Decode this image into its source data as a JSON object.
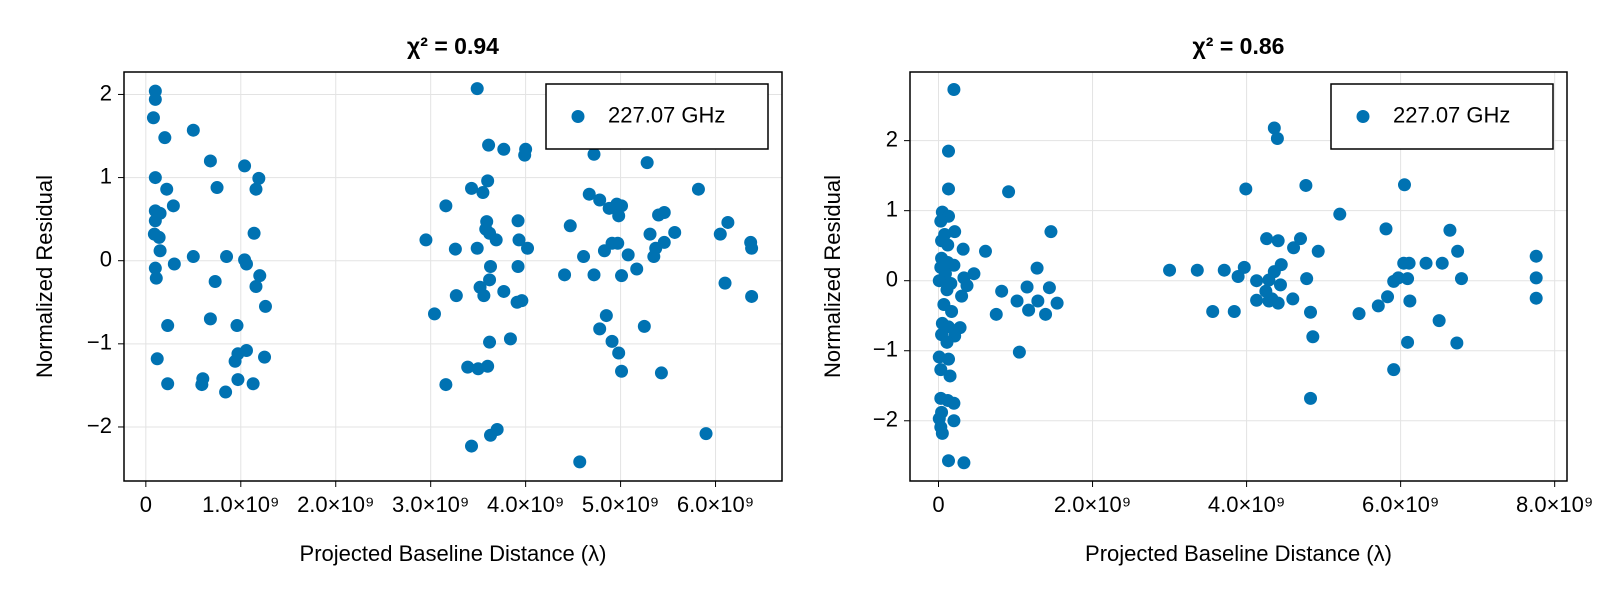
{
  "chart_data": [
    {
      "type": "scatter",
      "title": "χ² = 0.94",
      "xlabel": "Projected Baseline Distance (λ)",
      "ylabel": "Normalized Residual",
      "xlim": [
        -230000000.0,
        6700000000.0
      ],
      "ylim": [
        -2.65,
        2.27
      ],
      "xticks": [
        0,
        {
          "value": 1000000000.0,
          "label": "1.0×10⁹"
        },
        {
          "value": 2000000000.0,
          "label": "2.0×10⁹"
        },
        {
          "value": 3000000000.0,
          "label": "3.0×10⁹"
        },
        {
          "value": 4000000000.0,
          "label": "4.0×10⁹"
        },
        {
          "value": 5000000000.0,
          "label": "5.0×10⁹"
        },
        {
          "value": 6000000000.0,
          "label": "6.0×10⁹"
        }
      ],
      "yticks": [
        -2,
        -1,
        0,
        1,
        2
      ],
      "grid": true,
      "legend": "upper right",
      "series": [
        {
          "name": "227.07 GHz",
          "color": "#0072b2",
          "x": [
            100000000.0,
            100000000.0,
            80000000.0,
            500000000.0,
            200000000.0,
            680000000.0,
            1040000000.0,
            1190000000.0,
            100000000.0,
            220000000.0,
            750000000.0,
            1160000000.0,
            290000000.0,
            100000000.0,
            150000000.0,
            100000000.0,
            90000000.0,
            140000000.0,
            1140000000.0,
            150000000.0,
            500000000.0,
            850000000.0,
            1040000000.0,
            1060000000.0,
            300000000.0,
            100000000.0,
            1200000000.0,
            110000000.0,
            730000000.0,
            1160000000.0,
            1260000000.0,
            680000000.0,
            230000000.0,
            960000000.0,
            1060000000.0,
            970000000.0,
            1250000000.0,
            120000000.0,
            940000000.0,
            600000000.0,
            590000000.0,
            230000000.0,
            970000000.0,
            1130000000.0,
            840000000.0,
            3490000000.0,
            3610000000.0,
            3770000000.0,
            4000000000.0,
            3990000000.0,
            4720000000.0,
            5280000000.0,
            3600000000.0,
            3430000000.0,
            3550000000.0,
            5820000000.0,
            3160000000.0,
            4670000000.0,
            4780000000.0,
            4960000000.0,
            5010000000.0,
            4880000000.0,
            5400000000.0,
            5460000000.0,
            3920000000.0,
            3590000000.0,
            3580000000.0,
            3620000000.0,
            4470000000.0,
            4980000000.0,
            5310000000.0,
            5570000000.0,
            6130000000.0,
            6050000000.0,
            3690000000.0,
            2950000000.0,
            3930000000.0,
            6370000000.0,
            6380000000.0,
            5460000000.0,
            5370000000.0,
            4020000000.0,
            3490000000.0,
            3260000000.0,
            4830000000.0,
            4910000000.0,
            4970000000.0,
            4610000000.0,
            5080000000.0,
            5350000000.0,
            5170000000.0,
            4720000000.0,
            5010000000.0,
            4410000000.0,
            3630000000.0,
            3920000000.0,
            3620000000.0,
            6100000000.0,
            3520000000.0,
            3770000000.0,
            3560000000.0,
            3270000000.0,
            6380000000.0,
            3960000000.0,
            3910000000.0,
            3040000000.0,
            4850000000.0,
            4780000000.0,
            5250000000.0,
            3620000000.0,
            3840000000.0,
            4910000000.0,
            4980000000.0,
            3390000000.0,
            3600000000.0,
            3500000000.0,
            5010000000.0,
            5430000000.0,
            3160000000.0,
            5900000000.0,
            3700000000.0,
            3630000000.0,
            3430000000.0,
            4570000000.0
          ],
          "values": [
            2.04,
            1.94,
            1.72,
            1.57,
            1.48,
            1.2,
            1.14,
            0.99,
            1.0,
            0.86,
            0.88,
            0.86,
            0.66,
            0.6,
            0.57,
            0.48,
            0.32,
            0.28,
            0.33,
            0.12,
            0.05,
            0.05,
            0.01,
            -0.04,
            -0.04,
            -0.09,
            -0.18,
            -0.21,
            -0.25,
            -0.31,
            -0.55,
            -0.7,
            -0.78,
            -0.78,
            -1.08,
            -1.12,
            -1.16,
            -1.18,
            -1.21,
            -1.42,
            -1.49,
            -1.48,
            -1.43,
            -1.48,
            -1.58,
            2.07,
            1.39,
            1.34,
            1.34,
            1.27,
            1.28,
            1.18,
            0.96,
            0.87,
            0.82,
            0.86,
            0.66,
            0.8,
            0.73,
            0.68,
            0.66,
            0.63,
            0.55,
            0.58,
            0.48,
            0.47,
            0.38,
            0.33,
            0.42,
            0.54,
            0.32,
            0.34,
            0.46,
            0.32,
            0.25,
            0.25,
            0.25,
            0.22,
            0.15,
            0.22,
            0.15,
            0.15,
            0.15,
            0.14,
            0.12,
            0.21,
            0.21,
            0.05,
            0.07,
            0.05,
            -0.1,
            -0.17,
            -0.18,
            -0.17,
            -0.07,
            -0.07,
            -0.23,
            -0.27,
            -0.32,
            -0.37,
            -0.42,
            -0.42,
            -0.43,
            -0.48,
            -0.5,
            -0.64,
            -0.66,
            -0.82,
            -0.79,
            -0.98,
            -0.94,
            -0.97,
            -1.11,
            -1.28,
            -1.27,
            -1.3,
            -1.33,
            -1.35,
            -1.49,
            -2.08,
            -2.03,
            -2.1,
            -2.23,
            -2.42
          ]
        }
      ]
    },
    {
      "type": "scatter",
      "title": "χ² = 0.86",
      "xlabel": "Projected Baseline Distance (λ)",
      "ylabel": "Normalized Residual",
      "xlim": [
        -370000000.0,
        8160000000.0
      ],
      "ylim": [
        -2.86,
        2.98
      ],
      "xticks": [
        0,
        {
          "value": 2000000000.0,
          "label": "2.0×10⁹"
        },
        {
          "value": 4000000000.0,
          "label": "4.0×10⁹"
        },
        {
          "value": 6000000000.0,
          "label": "6.0×10⁹"
        },
        {
          "value": 8000000000.0,
          "label": "8.0×10⁹"
        }
      ],
      "yticks": [
        -2,
        -1,
        0,
        1,
        2
      ],
      "grid": true,
      "legend": "upper right",
      "series": [
        {
          "name": "227.07 GHz",
          "color": "#0072b2",
          "x": [
            200000000.0,
            130000000.0,
            130000000.0,
            910000000.0,
            50000000.0,
            130000000.0,
            30000000.0,
            210000000.0,
            80000000.0,
            1460000000.0,
            40000000.0,
            120000000.0,
            320000000.0,
            610000000.0,
            40000000.0,
            120000000.0,
            200000000.0,
            30000000.0,
            1280000000.0,
            90000000.0,
            460000000.0,
            330000000.0,
            10000000.0,
            160000000.0,
            370000000.0,
            1150000000.0,
            1440000000.0,
            110000000.0,
            820000000.0,
            300000000.0,
            1290000000.0,
            1540000000.0,
            1020000000.0,
            70000000.0,
            1170000000.0,
            1390000000.0,
            750000000.0,
            170000000.0,
            50000000.0,
            130000000.0,
            280000000.0,
            40000000.0,
            210000000.0,
            110000000.0,
            1050000000.0,
            10000000.0,
            130000000.0,
            30000000.0,
            150000000.0,
            30000000.0,
            120000000.0,
            200000000.0,
            40000000.0,
            10000000.0,
            200000000.0,
            30000000.0,
            50000000.0,
            130000000.0,
            330000000.0,
            3000000000.0,
            3360000000.0,
            3560000000.0,
            3710000000.0,
            3890000000.0,
            3970000000.0,
            3990000000.0,
            3840000000.0,
            4130000000.0,
            4130000000.0,
            4250000000.0,
            4290000000.0,
            4330000000.0,
            4290000000.0,
            4360000000.0,
            4410000000.0,
            4260000000.0,
            4360000000.0,
            4400000000.0,
            4450000000.0,
            4440000000.0,
            4410000000.0,
            4600000000.0,
            4610000000.0,
            4700000000.0,
            4770000000.0,
            4780000000.0,
            4830000000.0,
            4860000000.0,
            4830000000.0,
            4930000000.0,
            5210000000.0,
            5460000000.0,
            5710000000.0,
            5830000000.0,
            5810000000.0,
            5910000000.0,
            5910000000.0,
            5970000000.0,
            6040000000.0,
            6050000000.0,
            6090000000.0,
            6110000000.0,
            6120000000.0,
            6090000000.0,
            6330000000.0,
            6500000000.0,
            6540000000.0,
            6640000000.0,
            6740000000.0,
            6730000000.0,
            6790000000.0,
            7760000000.0,
            7760000000.0,
            7760000000.0
          ],
          "values": [
            2.73,
            1.85,
            1.31,
            1.27,
            0.98,
            0.92,
            0.85,
            0.7,
            0.66,
            0.7,
            0.57,
            0.51,
            0.45,
            0.42,
            0.32,
            0.26,
            0.22,
            0.19,
            0.18,
            0.1,
            0.1,
            0.04,
            0,
            -0.04,
            -0.07,
            -0.09,
            -0.1,
            -0.13,
            -0.15,
            -0.22,
            -0.29,
            -0.32,
            -0.29,
            -0.34,
            -0.42,
            -0.48,
            -0.48,
            -0.44,
            -0.61,
            -0.66,
            -0.67,
            -0.77,
            -0.79,
            -0.88,
            -1.02,
            -1.09,
            -1.12,
            -1.27,
            -1.36,
            -1.68,
            -1.71,
            -1.75,
            -1.88,
            -1.97,
            -2.0,
            -2.09,
            -2.18,
            -2.57,
            -2.6,
            0.15,
            0.15,
            -0.44,
            0.15,
            0.06,
            0.19,
            1.31,
            -0.44,
            0,
            -0.28,
            -0.15,
            -0.29,
            -0.26,
            0.01,
            0.13,
            0.57,
            0.6,
            2.18,
            2.03,
            0.23,
            -0.06,
            -0.32,
            -0.26,
            0.47,
            0.6,
            1.36,
            0.03,
            -0.45,
            -0.8,
            -1.68,
            0.42,
            0.95,
            -0.47,
            -0.36,
            -0.23,
            0.74,
            -0.01,
            -1.27,
            0.04,
            0.25,
            1.37,
            0.03,
            0.25,
            -0.29,
            -0.88,
            0.25,
            -0.57,
            0.25,
            0.72,
            0.42,
            -0.89,
            0.03,
            0.35,
            0.04,
            -0.25
          ]
        }
      ]
    }
  ]
}
